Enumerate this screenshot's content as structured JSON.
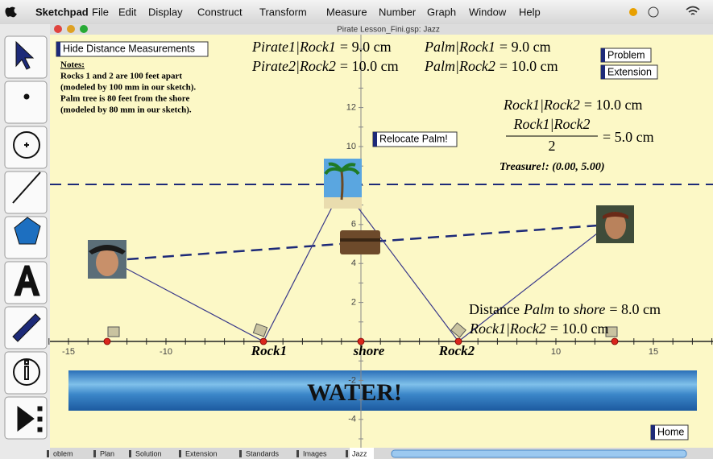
{
  "menu_bar": {
    "app": "Sketchpad",
    "items": [
      "File",
      "Edit",
      "Display",
      "Construct",
      "Transform",
      "Measure",
      "Number",
      "Graph",
      "Window",
      "Help"
    ]
  },
  "window": {
    "title": "Pirate Lesson_Fini.gsp: Jazz"
  },
  "buttons": {
    "hide_distance": "Hide Distance Measurements",
    "problem": "Problem",
    "extension": "Extension",
    "relocate_palm": "Relocate Palm!",
    "home": "Home"
  },
  "notes": {
    "heading": "Notes:",
    "lines": [
      "Rocks 1 and 2 are 100 feet apart",
      "(modeled by 100 mm in our sketch).",
      "Palm tree is 80 feet from the shore",
      "(modeled by 80 mm in our sketch)."
    ]
  },
  "measurements": [
    {
      "name": "Pirate1|Rock1",
      "value": "= 9.0 cm"
    },
    {
      "name": "Palm|Rock1",
      "value": "= 9.0 cm"
    },
    {
      "name": "Pirate2|Rock2",
      "value": "= 10.0 cm"
    },
    {
      "name": "Palm|Rock2",
      "value": "= 10.0 cm"
    }
  ],
  "rock_distance": {
    "name": "Rock1|Rock2",
    "value": "= 10.0 cm"
  },
  "half_distance": {
    "numerator": "Rock1|Rock2",
    "denominator": "2",
    "value": "= 5.0 cm"
  },
  "treasure": "Treasure!: (0.00, 5.00)",
  "palm_distance": {
    "prefix": "Distance",
    "object": "Palm",
    "to": "to",
    "target": "shore",
    "value": "= 8.0 cm"
  },
  "rock_distance_2": {
    "name": "Rock1|Rock2",
    "value": "= 10.0 cm"
  },
  "axes": {
    "x_tick_labels": [
      "-15",
      "-10",
      "10",
      "15"
    ],
    "y_tick_labels": [
      "12",
      "10",
      "6",
      "4",
      "2",
      "-2",
      "-4"
    ]
  },
  "point_labels": [
    "Rock1",
    "shore",
    "Rock2"
  ],
  "water": "WATER!",
  "tabs": [
    "oblem",
    "Plan",
    "Solution",
    "Extension",
    "Standards",
    "Images",
    "Jazz"
  ]
}
